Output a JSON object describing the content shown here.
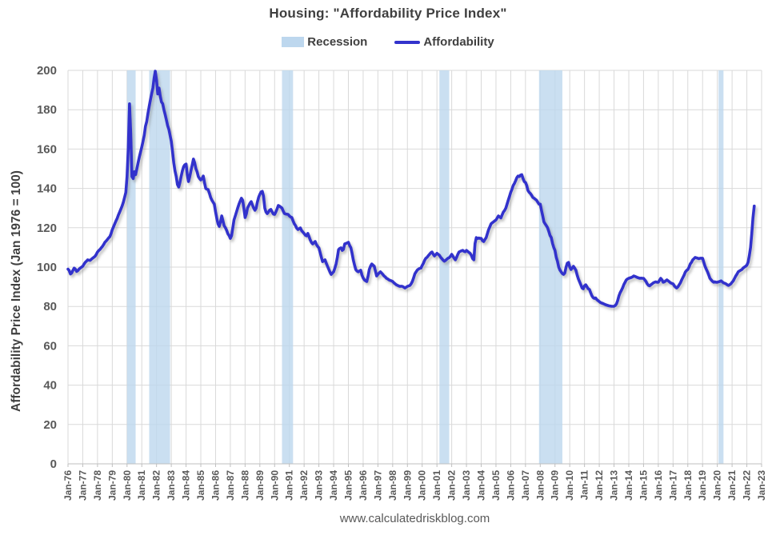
{
  "legend": {
    "recession_label": "Recession",
    "affordability_label": "Affordability"
  },
  "footer": {
    "source": "www.calculatedriskblog.com"
  },
  "colors": {
    "line": "#3333CC",
    "recession_band": "#BDD7EE",
    "gridline": "#D9D9D9",
    "axis": "#BFBFBF",
    "tick_label": "#595959",
    "title": "#3F3F3F"
  },
  "chart_data": {
    "type": "line",
    "title": "Housing: \"Affordability Price Index\"",
    "xlabel": "",
    "ylabel": "Affordability Price Index (Jan 1976 = 100)",
    "xlim": [
      1976,
      2023
    ],
    "ylim": [
      0,
      200
    ],
    "grid": true,
    "legend_position": "top",
    "x_start": 1976.0,
    "frequency_per_year": 12,
    "y_ticks": [
      0,
      20,
      40,
      60,
      80,
      100,
      120,
      140,
      160,
      180,
      200
    ],
    "x_ticks": [
      "Jan-76",
      "Jan-77",
      "Jan-78",
      "Jan-79",
      "Jan-80",
      "Jan-81",
      "Jan-82",
      "Jan-83",
      "Jan-84",
      "Jan-85",
      "Jan-86",
      "Jan-87",
      "Jan-88",
      "Jan-89",
      "Jan-90",
      "Jan-91",
      "Jan-92",
      "Jan-93",
      "Jan-94",
      "Jan-95",
      "Jan-96",
      "Jan-97",
      "Jan-98",
      "Jan-99",
      "Jan-00",
      "Jan-01",
      "Jan-02",
      "Jan-03",
      "Jan-04",
      "Jan-05",
      "Jan-06",
      "Jan-07",
      "Jan-08",
      "Jan-09",
      "Jan-10",
      "Jan-11",
      "Jan-12",
      "Jan-13",
      "Jan-14",
      "Jan-15",
      "Jan-16",
      "Jan-17",
      "Jan-18",
      "Jan-19",
      "Jan-20",
      "Jan-21",
      "Jan-22",
      "Jan-23"
    ],
    "recessions": [
      [
        1980.0,
        1980.583
      ],
      [
        1981.5,
        1982.917
      ],
      [
        1990.5,
        1991.25
      ],
      [
        2001.167,
        2001.833
      ],
      [
        2007.917,
        2009.5
      ],
      [
        2020.083,
        2020.417
      ]
    ],
    "series": [
      {
        "name": "Affordability",
        "color": "#3333CC",
        "values": [
          99.0,
          98.2,
          96.5,
          97.0,
          98.3,
          99.5,
          99.0,
          97.8,
          98.2,
          99.0,
          99.5,
          100.0,
          100.4,
          101.5,
          102.4,
          103.0,
          103.7,
          103.5,
          103.4,
          104.0,
          104.5,
          105.0,
          105.5,
          106.5,
          107.7,
          108.4,
          109.0,
          109.8,
          110.5,
          111.5,
          112.6,
          113.3,
          114.0,
          114.8,
          115.5,
          117.0,
          119.0,
          120.5,
          122.0,
          123.5,
          124.8,
          126.5,
          128.0,
          129.5,
          131.0,
          133.0,
          135.4,
          138.0,
          146.0,
          160.0,
          183.0,
          168.0,
          146.0,
          145.0,
          148.5,
          147.0,
          150.0,
          153.0,
          156.0,
          158.5,
          161.0,
          164.0,
          167.0,
          171.5,
          174.0,
          178.0,
          181.7,
          185.0,
          188.0,
          191.0,
          196.0,
          199.6,
          195.0,
          188.0,
          191.0,
          187.0,
          184.0,
          183.0,
          180.0,
          177.6,
          174.8,
          172.0,
          170.0,
          167.0,
          164.0,
          158.5,
          153.0,
          149.0,
          146.0,
          142.0,
          140.7,
          143.0,
          146.0,
          149.0,
          151.0,
          152.0,
          152.4,
          147.0,
          143.5,
          146.0,
          149.0,
          152.0,
          154.9,
          153.0,
          150.0,
          148.4,
          146.0,
          145.0,
          144.3,
          145.0,
          146.3,
          143.0,
          140.0,
          139.6,
          139.4,
          137.5,
          135.4,
          134.0,
          133.0,
          132.0,
          128.0,
          124.8,
          122.0,
          120.7,
          123.0,
          126.0,
          123.5,
          121.0,
          120.0,
          118.7,
          117.0,
          116.0,
          114.6,
          116.0,
          120.0,
          124.0,
          126.0,
          128.0,
          130.0,
          132.0,
          133.5,
          135.0,
          134.0,
          130.0,
          125.2,
          127.0,
          130.0,
          131.3,
          132.5,
          133.3,
          131.5,
          130.0,
          128.9,
          130.0,
          133.0,
          135.5,
          137.0,
          138.2,
          138.5,
          136.0,
          130.0,
          128.0,
          127.2,
          128.0,
          129.0,
          129.3,
          128.0,
          127.0,
          126.8,
          128.0,
          129.5,
          131.3,
          131.0,
          130.5,
          130.0,
          128.5,
          127.2,
          127.0,
          126.9,
          126.8,
          126.0,
          125.5,
          125.2,
          123.5,
          122.0,
          121.1,
          119.8,
          119.1,
          119.5,
          119.9,
          118.5,
          117.8,
          117.1,
          116.2,
          115.9,
          117.1,
          115.5,
          113.8,
          112.5,
          111.8,
          112.4,
          113.0,
          111.5,
          110.5,
          109.8,
          107.5,
          105.0,
          102.8,
          103.2,
          103.7,
          102.0,
          100.4,
          99.0,
          97.5,
          96.3,
          97.0,
          97.6,
          99.5,
          101.6,
          105.0,
          108.9,
          109.5,
          109.8,
          108.5,
          109.0,
          111.8,
          112.0,
          112.3,
          112.6,
          111.0,
          109.8,
          107.0,
          103.7,
          101.0,
          98.8,
          98.0,
          97.6,
          98.0,
          98.4,
          96.0,
          94.5,
          93.5,
          93.0,
          92.7,
          95.5,
          98.8,
          100.5,
          101.6,
          101.0,
          100.4,
          98.0,
          95.5,
          96.3,
          97.0,
          97.6,
          97.0,
          96.3,
          95.5,
          95.0,
          94.3,
          94.0,
          93.5,
          93.2,
          93.0,
          92.7,
          92.0,
          91.5,
          91.0,
          90.7,
          90.4,
          90.2,
          90.3,
          90.2,
          89.8,
          89.4,
          89.8,
          90.2,
          90.4,
          90.7,
          91.5,
          92.7,
          94.5,
          96.5,
          97.5,
          98.5,
          99.0,
          99.3,
          99.5,
          100.8,
          102.0,
          103.5,
          104.5,
          105.0,
          105.8,
          106.5,
          107.3,
          107.7,
          106.5,
          105.7,
          106.3,
          107.0,
          106.5,
          106.0,
          105.0,
          104.3,
          103.5,
          103.0,
          103.4,
          104.0,
          104.5,
          104.8,
          105.5,
          106.5,
          105.5,
          104.5,
          103.7,
          105.0,
          106.5,
          107.7,
          108.0,
          108.3,
          108.5,
          108.0,
          107.8,
          108.5,
          108.0,
          107.5,
          107.0,
          106.0,
          104.3,
          103.7,
          112.0,
          115.0,
          114.5,
          114.8,
          114.6,
          114.6,
          113.5,
          113.0,
          114.0,
          115.0,
          117.0,
          119.0,
          120.5,
          122.0,
          122.5,
          123.0,
          123.5,
          124.0,
          125.0,
          126.0,
          125.5,
          125.0,
          126.5,
          128.0,
          128.8,
          130.0,
          132.0,
          134.0,
          136.0,
          138.0,
          139.5,
          141.5,
          142.5,
          144.0,
          145.5,
          146.3,
          146.0,
          146.8,
          147.0,
          145.0,
          143.5,
          143.0,
          141.5,
          139.0,
          138.0,
          137.4,
          136.5,
          135.4,
          135.0,
          134.5,
          134.0,
          133.0,
          132.0,
          132.0,
          129.0,
          126.0,
          123.0,
          122.0,
          121.0,
          120.0,
          118.0,
          116.0,
          115.0,
          112.0,
          110.0,
          108.5,
          105.0,
          103.0,
          100.0,
          98.5,
          97.6,
          96.7,
          96.3,
          97.0,
          100.0,
          102.0,
          102.4,
          100.0,
          98.8,
          99.5,
          100.4,
          99.5,
          98.4,
          96.0,
          94.0,
          92.5,
          91.0,
          89.4,
          89.0,
          90.5,
          91.0,
          90.0,
          89.0,
          88.6,
          87.0,
          85.4,
          84.5,
          84.1,
          84.3,
          83.5,
          83.0,
          82.5,
          82.0,
          81.7,
          81.5,
          81.2,
          80.9,
          80.7,
          80.5,
          80.3,
          80.2,
          80.1,
          80.1,
          80.1,
          80.5,
          81.3,
          83.0,
          85.4,
          87.0,
          88.2,
          89.5,
          91.1,
          92.3,
          93.5,
          94.0,
          94.3,
          94.5,
          94.7,
          95.0,
          95.5,
          95.3,
          95.0,
          94.7,
          94.5,
          94.3,
          94.4,
          94.3,
          94.3,
          93.5,
          92.7,
          91.5,
          90.7,
          90.5,
          91.0,
          91.5,
          92.0,
          92.3,
          92.5,
          92.3,
          92.3,
          93.3,
          94.3,
          93.5,
          92.3,
          92.5,
          93.0,
          93.5,
          93.0,
          92.5,
          92.0,
          91.7,
          91.5,
          90.5,
          89.8,
          89.4,
          90.0,
          91.0,
          92.0,
          93.5,
          94.7,
          96.0,
          97.5,
          98.3,
          98.8,
          100.0,
          101.6,
          102.5,
          103.7,
          104.3,
          104.9,
          104.7,
          104.5,
          104.3,
          104.5,
          104.5,
          104.5,
          102.5,
          100.4,
          99.0,
          97.6,
          96.0,
          94.3,
          93.5,
          92.8,
          92.3,
          92.5,
          92.3,
          92.3,
          92.5,
          92.7,
          93.0,
          92.5,
          92.0,
          91.8,
          91.5,
          91.0,
          90.7,
          91.0,
          91.5,
          92.3,
          93.0,
          94.3,
          95.5,
          96.5,
          97.6,
          98.0,
          98.4,
          98.8,
          99.5,
          100.0,
          100.4,
          101.0,
          102.5,
          105.7,
          110.0,
          117.0,
          125.0,
          131.0
        ]
      }
    ]
  }
}
